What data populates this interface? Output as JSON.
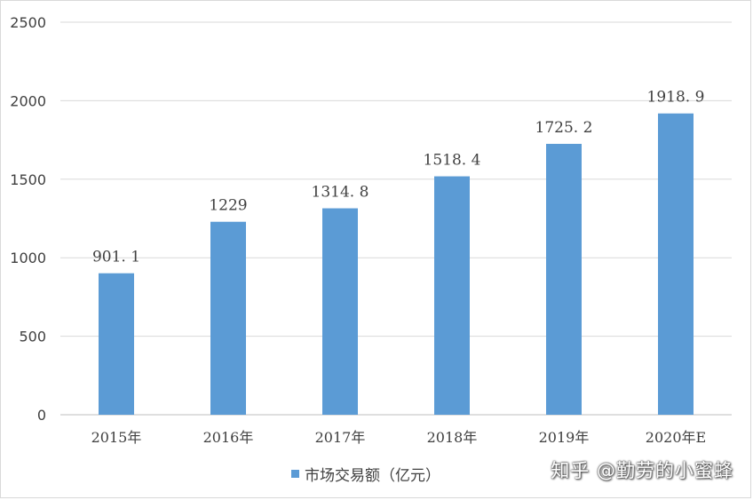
{
  "chart_data": {
    "type": "bar",
    "categories": [
      "2015年",
      "2016年",
      "2017年",
      "2018年",
      "2019年",
      "2020年E"
    ],
    "series": [
      {
        "name": "市场交易额（亿元）",
        "values": [
          901.1,
          1229,
          1314.8,
          1518.4,
          1725.2,
          1918.9
        ]
      }
    ],
    "data_labels": [
      "901. 1",
      "1229",
      "1314. 8",
      "1518. 4",
      "1725. 2",
      "1918. 9"
    ],
    "yticks": [
      "0",
      "500",
      "1000",
      "1500",
      "2000",
      "2500"
    ],
    "ylim": [
      0,
      2500
    ],
    "grid": true,
    "legend_position": "bottom",
    "bar_color": "#5b9bd5"
  },
  "legend": {
    "label": "市场交易额（亿元）"
  },
  "watermark": {
    "text": "知乎 @勤劳的小蜜蜂"
  }
}
